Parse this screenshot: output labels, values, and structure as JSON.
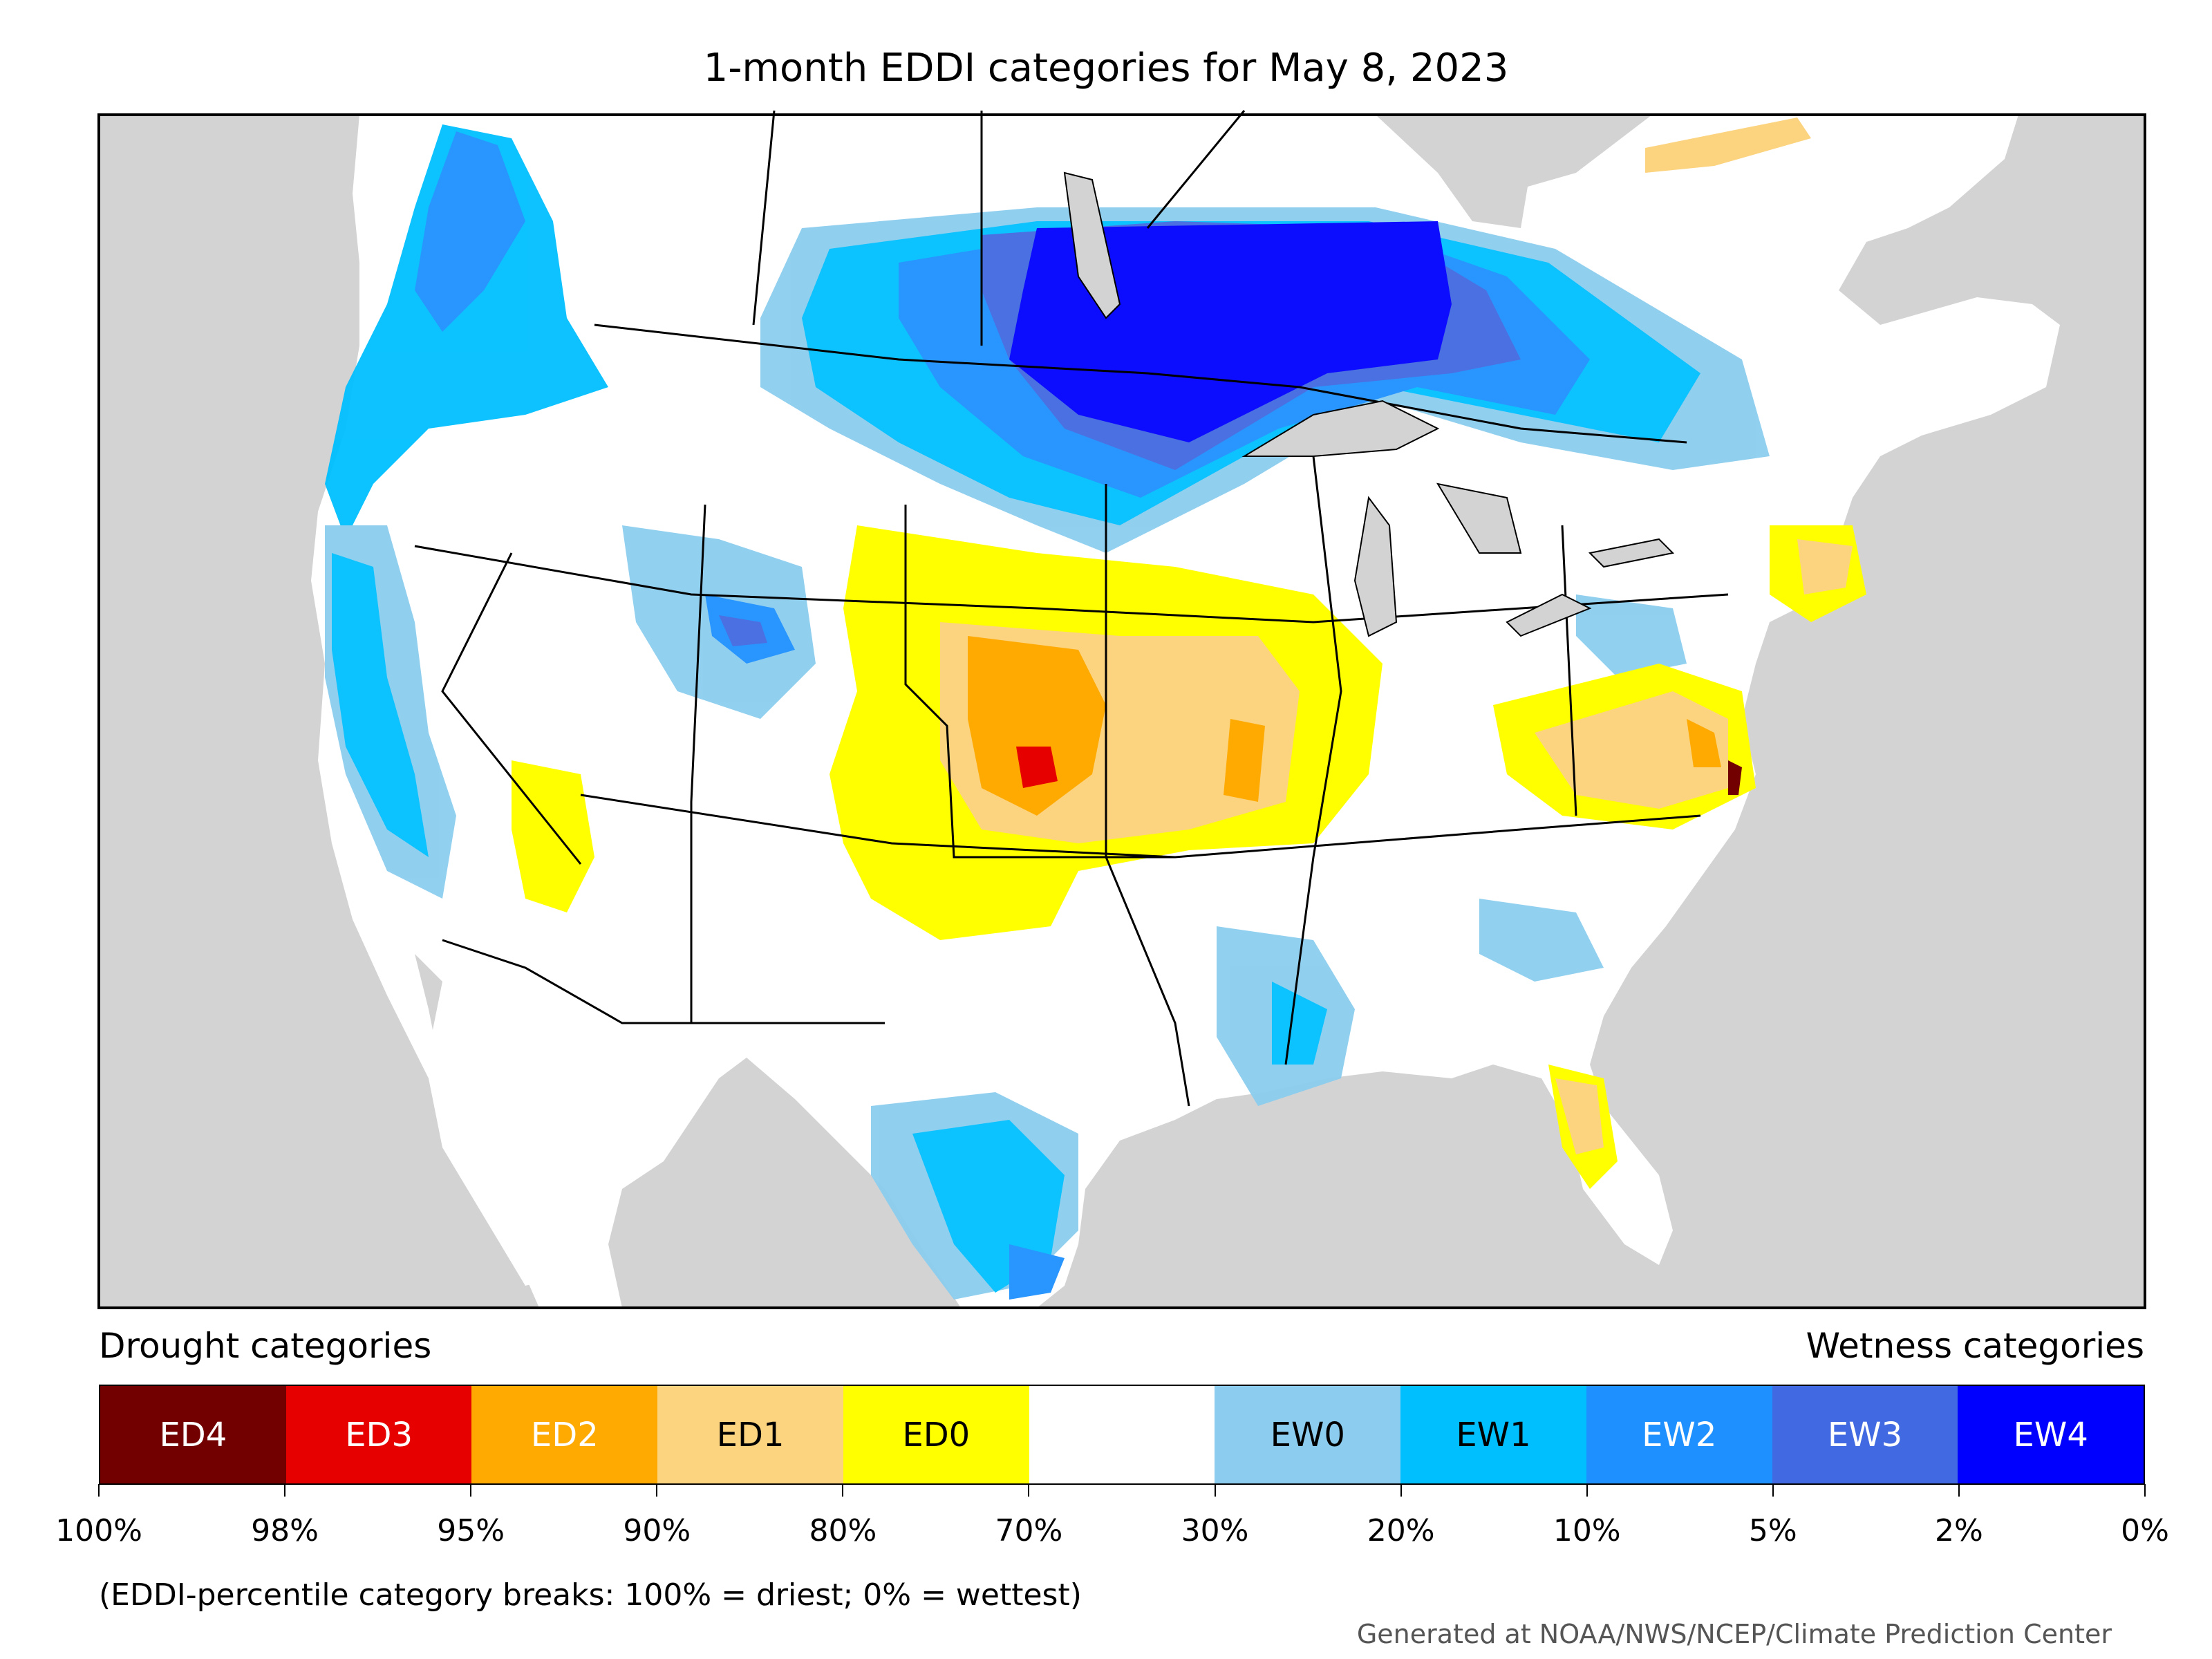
{
  "title": "1-month EDDI categories for May 8, 2023",
  "legend": {
    "drought_heading": "Drought categories",
    "wetness_heading": "Wetness categories",
    "categories": [
      {
        "label": "ED4",
        "color": "#730000",
        "text_color": "#ffffff"
      },
      {
        "label": "ED3",
        "color": "#e60000",
        "text_color": "#ffffff"
      },
      {
        "label": "ED2",
        "color": "#ffaa00",
        "text_color": "#ffffff"
      },
      {
        "label": "ED1",
        "color": "#fcd37f",
        "text_color": "#000000"
      },
      {
        "label": "ED0",
        "color": "#ffff00",
        "text_color": "#000000"
      },
      {
        "label": "",
        "color": "#ffffff",
        "text_color": "#000000"
      },
      {
        "label": "EW0",
        "color": "#8ccdef",
        "text_color": "#000000"
      },
      {
        "label": "EW1",
        "color": "#00bfff",
        "text_color": "#000000"
      },
      {
        "label": "EW2",
        "color": "#1e90ff",
        "text_color": "#ffffff"
      },
      {
        "label": "EW3",
        "color": "#4169e1",
        "text_color": "#ffffff"
      },
      {
        "label": "EW4",
        "color": "#0000ff",
        "text_color": "#ffffff"
      }
    ],
    "breaks": [
      "100%",
      "98%",
      "95%",
      "90%",
      "80%",
      "70%",
      "30%",
      "20%",
      "10%",
      "5%",
      "2%",
      "0%"
    ]
  },
  "note": "(EDDI-percentile category breaks: 100% = driest; 0% = wettest)",
  "credit": "Generated at NOAA/NWS/NCEP/Climate Prediction Center",
  "map": {
    "ocean_color": "#d3d3d3",
    "land_color": "#ffffff",
    "border_color": "#000000"
  }
}
